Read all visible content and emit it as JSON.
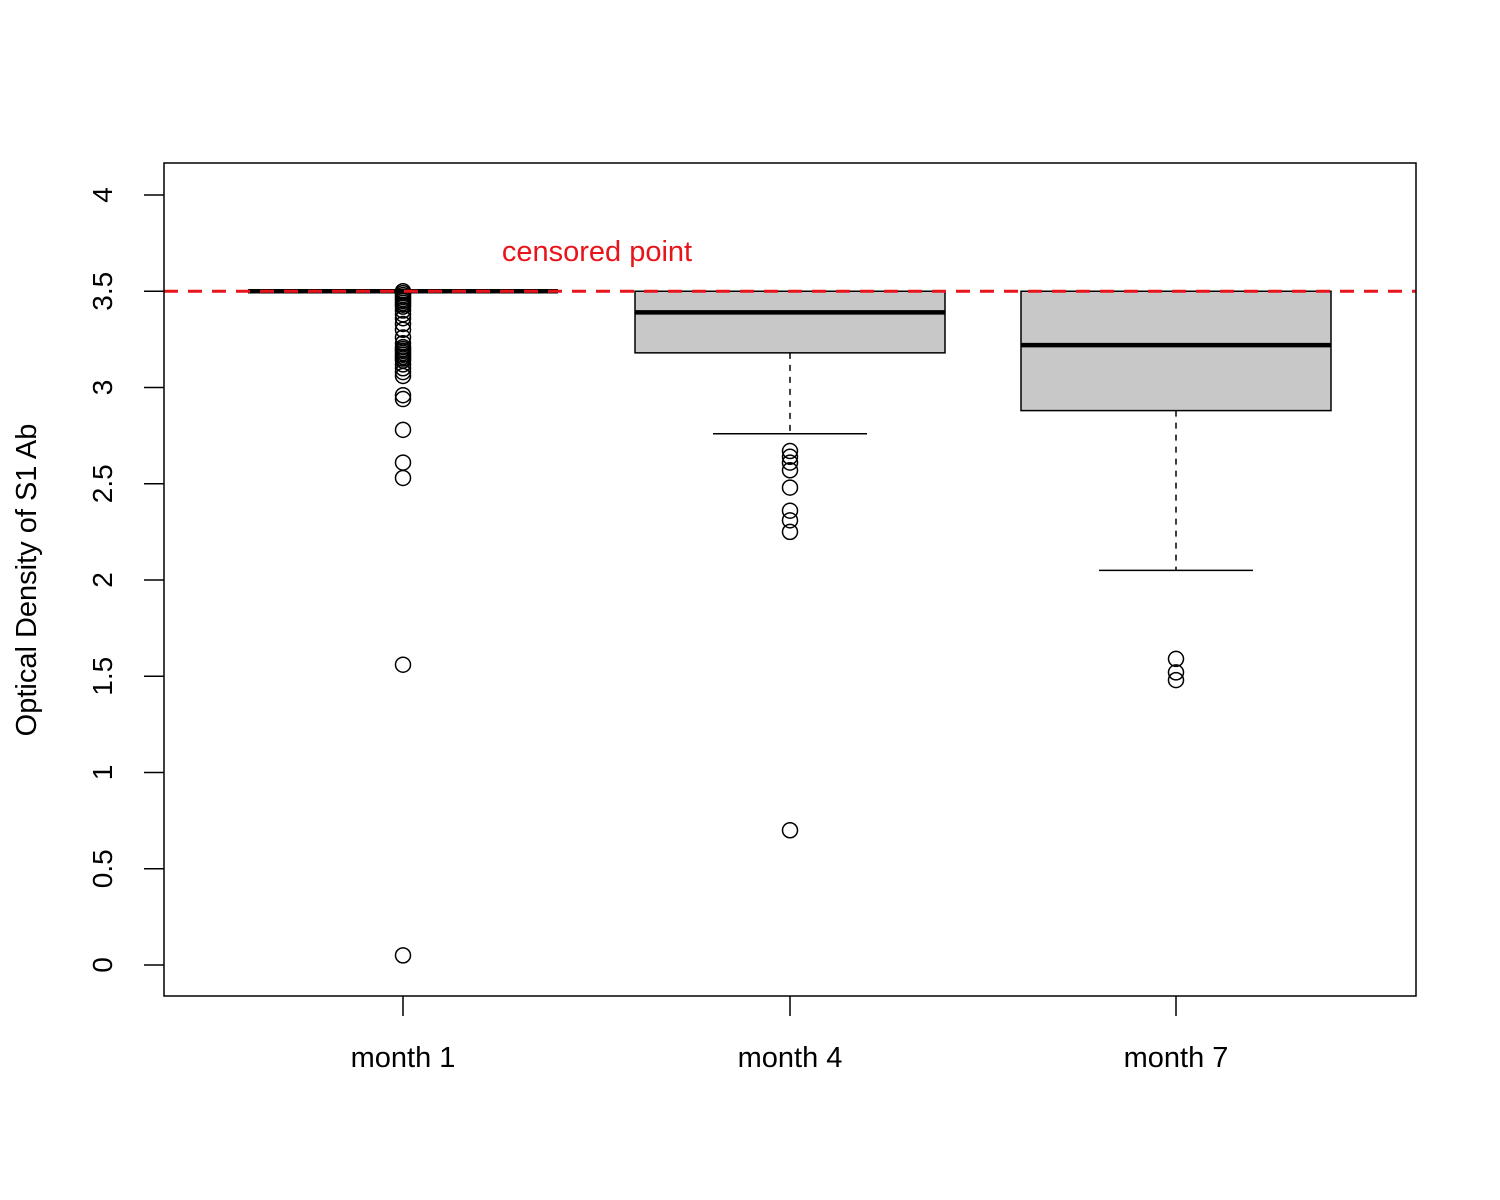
{
  "chart_data": {
    "type": "boxplot",
    "title": "",
    "xlabel": "",
    "ylabel": "Optical Density of S1 Ab",
    "ylim": [
      -0.16,
      4.16
    ],
    "y_ticks": [
      {
        "value": 0,
        "label": "0"
      },
      {
        "value": 0.5,
        "label": "0.5"
      },
      {
        "value": 1,
        "label": "1"
      },
      {
        "value": 1.5,
        "label": "1.5"
      },
      {
        "value": 2,
        "label": "2"
      },
      {
        "value": 2.5,
        "label": "2.5"
      },
      {
        "value": 3,
        "label": "3"
      },
      {
        "value": 3.5,
        "label": "3.5"
      },
      {
        "value": 4,
        "label": "4"
      }
    ],
    "categories": [
      "month 1",
      "month 4",
      "month 7"
    ],
    "box_fill": "#c8c8c8",
    "boxes": [
      {
        "category": "month 1",
        "whisker_low": 3.5,
        "q1": 3.5,
        "median": 3.5,
        "q3": 3.5,
        "whisker_high": 3.5,
        "outliers": [
          3.5,
          3.49,
          3.48,
          3.47,
          3.46,
          3.45,
          3.44,
          3.43,
          3.42,
          3.4,
          3.38,
          3.36,
          3.33,
          3.3,
          3.26,
          3.23,
          3.21,
          3.2,
          3.19,
          3.18,
          3.17,
          3.16,
          3.15,
          3.14,
          3.12,
          3.1,
          3.08,
          3.06,
          2.96,
          2.94,
          2.78,
          2.61,
          2.53,
          1.56,
          0.05
        ]
      },
      {
        "category": "month 4",
        "whisker_low": 2.76,
        "q1": 3.18,
        "median": 3.39,
        "q3": 3.5,
        "whisker_high": 3.5,
        "outliers": [
          2.67,
          2.64,
          2.61,
          2.57,
          2.48,
          2.36,
          2.31,
          2.25,
          0.7
        ]
      },
      {
        "category": "month 7",
        "whisker_low": 2.05,
        "q1": 2.88,
        "median": 3.22,
        "q3": 3.5,
        "whisker_high": 3.5,
        "outliers": [
          1.59,
          1.52,
          1.48
        ]
      }
    ],
    "reference_line": {
      "y": 3.5,
      "color": "#e8141b",
      "style": "dashed",
      "label": "censored point"
    }
  }
}
